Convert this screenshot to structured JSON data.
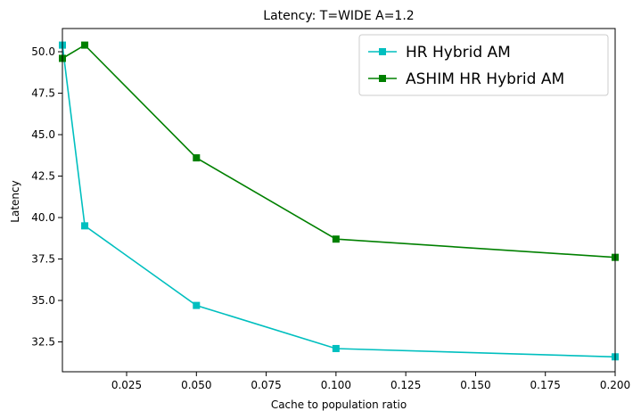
{
  "chart_data": {
    "type": "line",
    "title": "Latency: T=WIDE A=1.2",
    "xlabel": "Cache to population ratio",
    "ylabel": "Latency",
    "xlim": [
      0.002,
      0.2
    ],
    "ylim": [
      30.7,
      51.4
    ],
    "xticks": [
      0.025,
      0.05,
      0.075,
      0.1,
      0.125,
      0.15,
      0.175,
      0.2
    ],
    "xtick_labels": [
      "0.025",
      "0.050",
      "0.075",
      "0.100",
      "0.125",
      "0.150",
      "0.175",
      "0.200"
    ],
    "yticks": [
      32.5,
      35.0,
      37.5,
      40.0,
      42.5,
      45.0,
      47.5,
      50.0
    ],
    "ytick_labels": [
      "32.5",
      "35.0",
      "37.5",
      "40.0",
      "42.5",
      "45.0",
      "47.5",
      "50.0"
    ],
    "grid": false,
    "legend_position": "top-right",
    "series": [
      {
        "name": "HR Hybrid AM",
        "color": "#00bfbf",
        "marker": "square",
        "x": [
          0.002,
          0.01,
          0.05,
          0.1,
          0.2
        ],
        "y": [
          50.4,
          39.5,
          34.7,
          32.1,
          31.6
        ]
      },
      {
        "name": "ASHIM HR Hybrid AM",
        "color": "#008000",
        "marker": "square",
        "x": [
          0.002,
          0.01,
          0.05,
          0.1,
          0.2
        ],
        "y": [
          49.6,
          50.4,
          43.6,
          38.7,
          37.6
        ]
      }
    ]
  }
}
